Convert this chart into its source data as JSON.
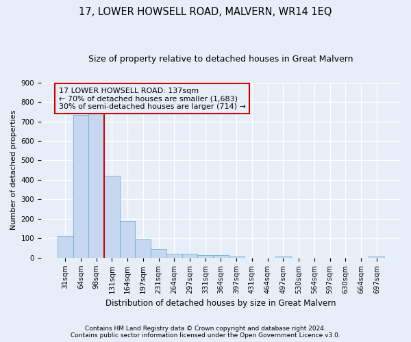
{
  "title": "17, LOWER HOWSELL ROAD, MALVERN, WR14 1EQ",
  "subtitle": "Size of property relative to detached houses in Great Malvern",
  "xlabel": "Distribution of detached houses by size in Great Malvern",
  "ylabel": "Number of detached properties",
  "footnote1": "Contains HM Land Registry data © Crown copyright and database right 2024.",
  "footnote2": "Contains public sector information licensed under the Open Government Licence v3.0.",
  "bar_labels": [
    "31sqm",
    "64sqm",
    "98sqm",
    "131sqm",
    "164sqm",
    "197sqm",
    "231sqm",
    "264sqm",
    "297sqm",
    "331sqm",
    "364sqm",
    "397sqm",
    "431sqm",
    "464sqm",
    "497sqm",
    "530sqm",
    "564sqm",
    "597sqm",
    "630sqm",
    "664sqm",
    "697sqm"
  ],
  "bar_values": [
    110,
    735,
    750,
    420,
    190,
    95,
    45,
    20,
    20,
    15,
    15,
    8,
    0,
    0,
    8,
    0,
    0,
    0,
    0,
    0,
    8
  ],
  "bar_color": "#c5d8f0",
  "bar_edge_color": "#6baed6",
  "annotation_line1": "17 LOWER HOWSELL ROAD: 137sqm",
  "annotation_line2": "← 70% of detached houses are smaller (1,683)",
  "annotation_line3": "30% of semi-detached houses are larger (714) →",
  "vline_pos": 2.5,
  "vline_color": "#cc0000",
  "box_edge_color": "#cc0000",
  "ylim": [
    0,
    900
  ],
  "yticks": [
    0,
    100,
    200,
    300,
    400,
    500,
    600,
    700,
    800,
    900
  ],
  "background_color": "#e8eef7",
  "grid_color": "#ffffff",
  "title_fontsize": 10.5,
  "subtitle_fontsize": 9,
  "annot_fontsize": 8,
  "axis_label_fontsize": 8,
  "tick_fontsize": 7.5,
  "xlabel_fontsize": 8.5,
  "footnote_fontsize": 6.5
}
